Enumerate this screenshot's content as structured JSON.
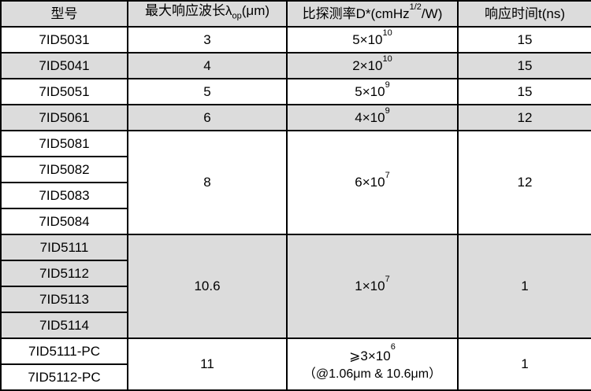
{
  "colors": {
    "header_bg": "#dcdcdc",
    "shaded_row_bg": "#dcdcdc",
    "border": "#000000"
  },
  "header": {
    "model": "型号",
    "wavelength": "最大响应波长λ",
    "wavelength_sub": "op",
    "wavelength_unit": "(μm)",
    "detectivity": "比探测率D*(cmHz",
    "detectivity_sup": "1/2",
    "detectivity_unit": "/W)",
    "response": "响应时间t(ns)"
  },
  "rows": [
    {
      "model": "7ID5031",
      "wavelength": "3",
      "d_base": "5×10",
      "d_exp": "10",
      "response": "15"
    },
    {
      "model": "7ID5041",
      "wavelength": "4",
      "d_base": "2×10",
      "d_exp": "10",
      "response": "15"
    },
    {
      "model": "7ID5051",
      "wavelength": "5",
      "d_base": "5×10",
      "d_exp": "9",
      "response": "15"
    },
    {
      "model": "7ID5061",
      "wavelength": "6",
      "d_base": "4×10",
      "d_exp": "9",
      "response": "12"
    }
  ],
  "group8": {
    "models": [
      "7ID5081",
      "7ID5082",
      "7ID5083",
      "7ID5084"
    ],
    "wavelength": "8",
    "d_base": "6×10",
    "d_exp": "7",
    "response": "12"
  },
  "group106": {
    "models": [
      "7ID5111",
      "7ID5112",
      "7ID5113",
      "7ID5114"
    ],
    "wavelength": "10.6",
    "d_base": "1×10",
    "d_exp": "7",
    "response": "1"
  },
  "grouppc": {
    "models": [
      "7ID5111-PC",
      "7ID5112-PC"
    ],
    "wavelength": "11",
    "d_base": "⩾3×10",
    "d_exp": "6",
    "d_note": "（@1.06μm & 10.6μm）",
    "response": "1"
  }
}
